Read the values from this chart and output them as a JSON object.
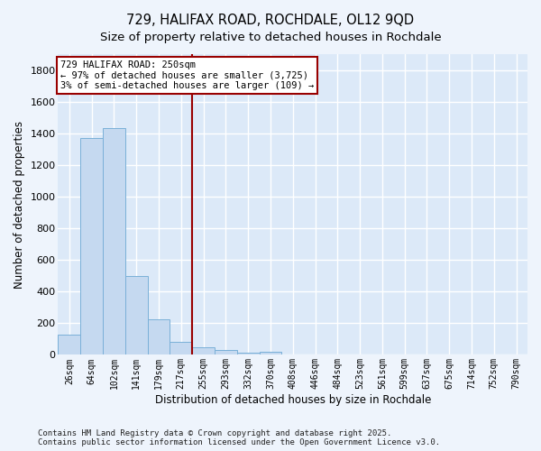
{
  "title_line1": "729, HALIFAX ROAD, ROCHDALE, OL12 9QD",
  "title_line2": "Size of property relative to detached houses in Rochdale",
  "xlabel": "Distribution of detached houses by size in Rochdale",
  "ylabel": "Number of detached properties",
  "bar_color": "#c5d9f0",
  "bar_edge_color": "#7ab0d8",
  "bg_color": "#dce9f8",
  "fig_bg": "#eef4fc",
  "grid_color": "#ffffff",
  "vline_color": "#990000",
  "annotation_text": "729 HALIFAX ROAD: 250sqm\n← 97% of detached houses are smaller (3,725)\n3% of semi-detached houses are larger (109) →",
  "categories": [
    "26sqm",
    "64sqm",
    "102sqm",
    "141sqm",
    "179sqm",
    "217sqm",
    "255sqm",
    "293sqm",
    "332sqm",
    "370sqm",
    "408sqm",
    "446sqm",
    "484sqm",
    "523sqm",
    "561sqm",
    "599sqm",
    "637sqm",
    "675sqm",
    "714sqm",
    "752sqm",
    "790sqm"
  ],
  "values": [
    130,
    1370,
    1430,
    500,
    225,
    80,
    50,
    30,
    15,
    18,
    0,
    0,
    0,
    0,
    0,
    0,
    0,
    0,
    0,
    0,
    0
  ],
  "ylim_max": 1900,
  "yticks": [
    0,
    200,
    400,
    600,
    800,
    1000,
    1200,
    1400,
    1600,
    1800
  ],
  "vline_x": 5.5,
  "footer_text": "Contains HM Land Registry data © Crown copyright and database right 2025.\nContains public sector information licensed under the Open Government Licence v3.0."
}
